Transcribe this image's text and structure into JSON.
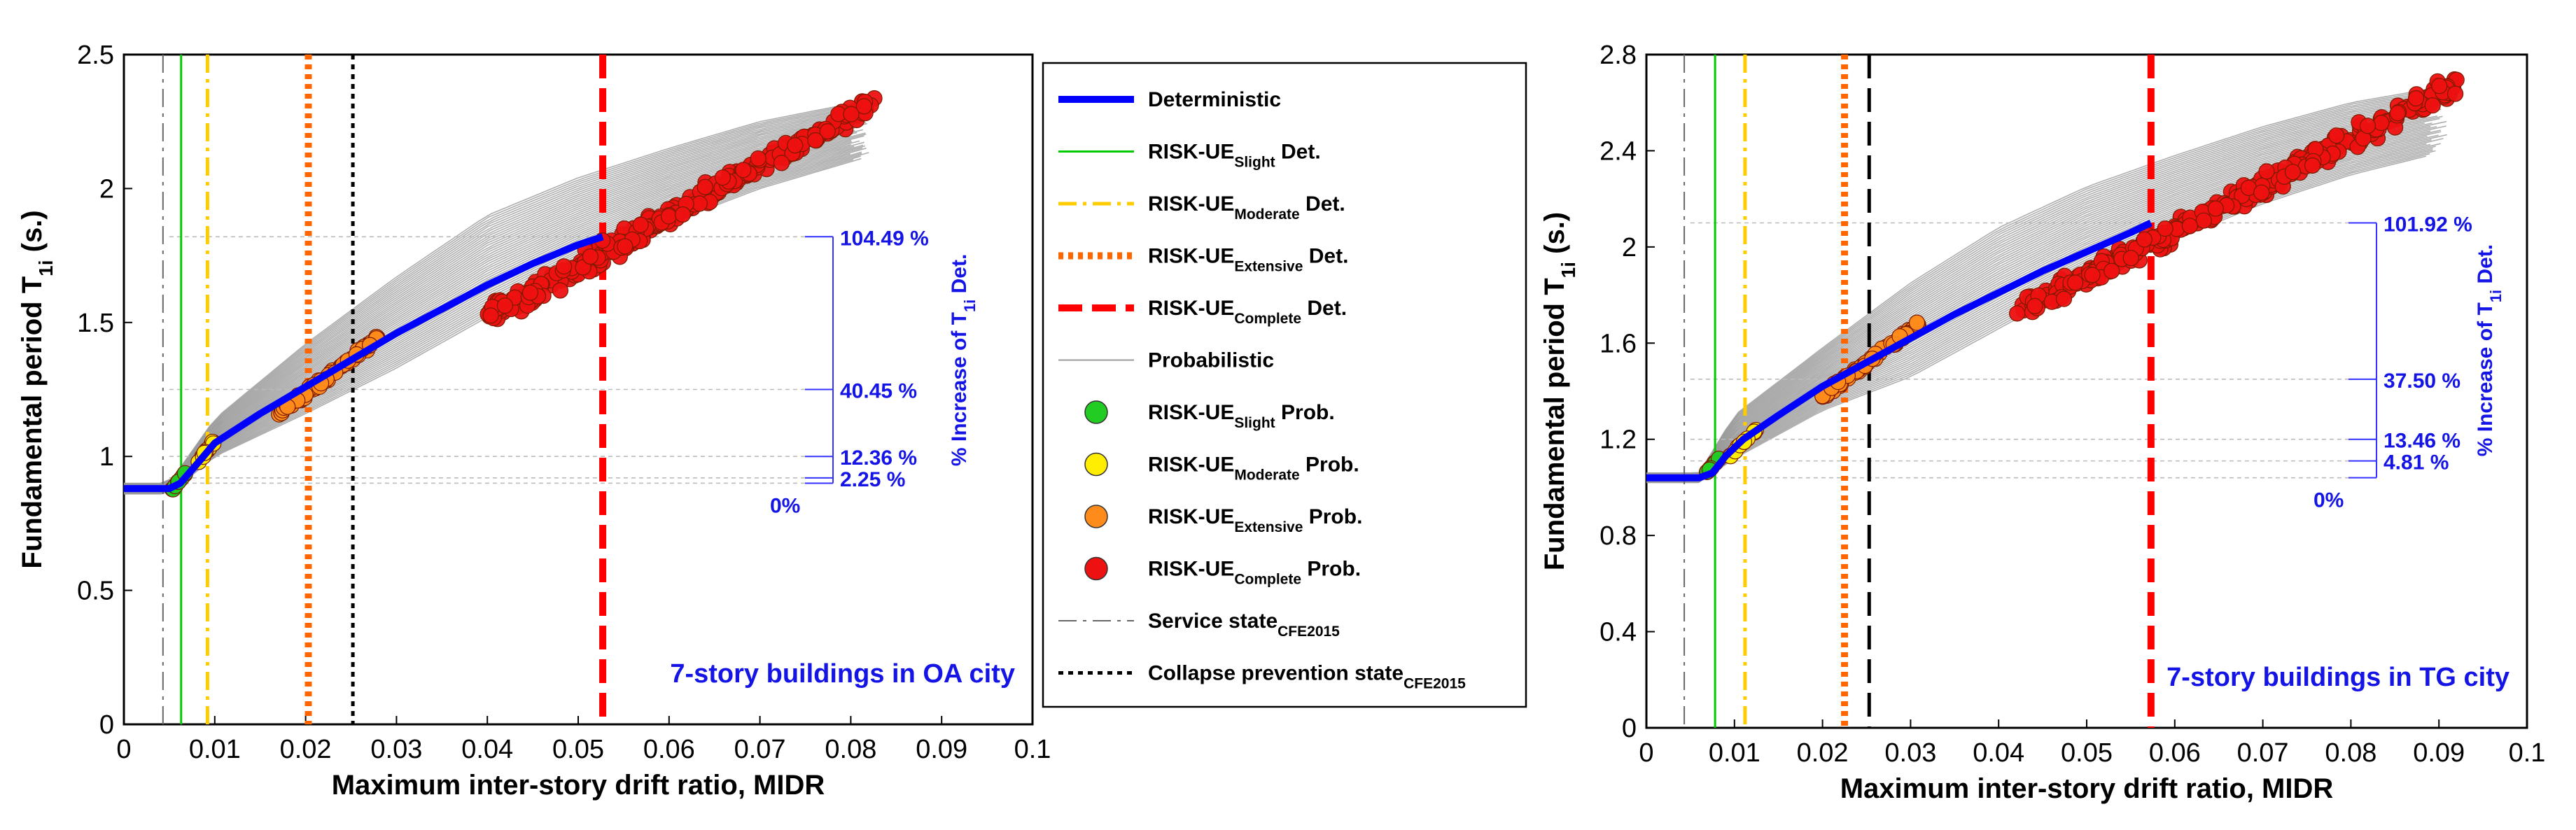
{
  "legend": {
    "items": [
      {
        "label": "Deterministic",
        "sub": "",
        "suffix": "",
        "type": "line",
        "color": "#0000ff",
        "dash": "solid",
        "thick": "heavy"
      },
      {
        "label": "RISK-UE",
        "sub": "Slight",
        "suffix": " Det.",
        "type": "line",
        "color": "#00cc00",
        "dash": "solid",
        "thick": "thin"
      },
      {
        "label": "RISK-UE",
        "sub": "Moderate",
        "suffix": " Det.",
        "type": "line",
        "color": "#ffcc00",
        "dash": "dashdot",
        "thick": "mid"
      },
      {
        "label": "RISK-UE",
        "sub": "Extensive",
        "suffix": " Det.",
        "type": "line",
        "color": "#ff6600",
        "dash": "dotted",
        "thick": "heavy"
      },
      {
        "label": "RISK-UE",
        "sub": "Complete",
        "suffix": " Det.",
        "type": "line",
        "color": "#ff0000",
        "dash": "dashed",
        "thick": "heavy"
      },
      {
        "label": "Probabilistic",
        "sub": "",
        "suffix": "",
        "type": "line",
        "color": "#9a9a9a",
        "dash": "solid",
        "thick": "hair"
      },
      {
        "label": "RISK-UE",
        "sub": "Slight",
        "suffix": " Prob.",
        "type": "marker",
        "color": "#22cc22"
      },
      {
        "label": "RISK-UE",
        "sub": "Moderate",
        "suffix": " Prob.",
        "type": "marker",
        "color": "#ffee00"
      },
      {
        "label": "RISK-UE",
        "sub": "Extensive",
        "suffix": " Prob.",
        "type": "marker",
        "color": "#ff8c1a"
      },
      {
        "label": "RISK-UE",
        "sub": "Complete",
        "suffix": " Prob.",
        "type": "marker",
        "color": "#ee1111"
      },
      {
        "label": "Service state",
        "sub": "CFE2015",
        "suffix": "",
        "type": "line",
        "color": "#666666",
        "dash": "dashdot",
        "thick": "hair"
      },
      {
        "label": "Collapse prevention state",
        "sub": "CFE2015",
        "suffix": "",
        "type": "line",
        "color": "#000000",
        "dash": "dotted",
        "thick": "mid"
      }
    ]
  },
  "chart_data": [
    {
      "type": "line",
      "caption": "7-story buildings in OA city",
      "xlabel": "Maximum inter-story drift ratio, MIDR",
      "ylabel": "Fundamental period T",
      "ylabel_sub": "1i",
      "ylabel_suffix": " (s.)",
      "xlim": [
        0,
        0.1
      ],
      "ylim": [
        0,
        2.5
      ],
      "xticks": [
        "0",
        "0.01",
        "0.02",
        "0.03",
        "0.04",
        "0.05",
        "0.06",
        "0.07",
        "0.08",
        "0.09",
        "0.1"
      ],
      "yticks": [
        "0",
        "0.5",
        "1",
        "1.5",
        "2",
        "2.5"
      ],
      "deterministic": {
        "x": [
          0,
          0.005,
          0.0062,
          0.008,
          0.01,
          0.015,
          0.02,
          0.025,
          0.03,
          0.035,
          0.04,
          0.045,
          0.05,
          0.0527
        ],
        "y": [
          0.88,
          0.88,
          0.9,
          0.97,
          1.05,
          1.16,
          1.26,
          1.36,
          1.46,
          1.55,
          1.64,
          1.72,
          1.79,
          1.82
        ]
      },
      "prob_band": {
        "x": [
          0,
          0.005,
          0.01,
          0.02,
          0.03,
          0.04,
          0.05,
          0.06,
          0.07,
          0.082
        ],
        "upper": [
          0.9,
          0.9,
          1.14,
          1.42,
          1.67,
          1.9,
          2.04,
          2.15,
          2.25,
          2.33
        ],
        "lower": [
          0.86,
          0.86,
          1.0,
          1.16,
          1.33,
          1.52,
          1.7,
          1.87,
          2.0,
          2.12
        ]
      },
      "vlines": [
        {
          "x": 0.0043,
          "color": "#666666",
          "dash": "dashdot",
          "thick": "hair"
        },
        {
          "x": 0.0063,
          "color": "#00cc00",
          "dash": "solid",
          "thick": "thin"
        },
        {
          "x": 0.0092,
          "color": "#ffcc00",
          "dash": "dashdot",
          "thick": "mid"
        },
        {
          "x": 0.0203,
          "color": "#ff6600",
          "dash": "dotted",
          "thick": "heavy"
        },
        {
          "x": 0.0252,
          "color": "#000000",
          "dash": "dotted",
          "thick": "mid"
        },
        {
          "x": 0.0527,
          "color": "#ff0000",
          "dash": "dashed",
          "thick": "heavy"
        }
      ],
      "clusters": [
        {
          "name": "Slight",
          "color": "#22cc22",
          "x0": 0.0052,
          "x1": 0.0068,
          "y0": 0.87,
          "y1": 0.94,
          "n": 10
        },
        {
          "name": "Moderate",
          "color": "#ffee00",
          "x0": 0.0076,
          "x1": 0.0102,
          "y0": 0.95,
          "y1": 1.07,
          "n": 12
        },
        {
          "name": "Extensive",
          "color": "#ff8c1a",
          "x0": 0.017,
          "x1": 0.028,
          "y0": 1.16,
          "y1": 1.44,
          "n": 70
        },
        {
          "name": "Complete",
          "color": "#ee1111",
          "x0": 0.04,
          "x1": 0.083,
          "y0": 1.52,
          "y1": 2.33,
          "n": 320
        }
      ],
      "percent_axis": "% Increase of T",
      "percent_axis_sub": "1i",
      "percent_axis_suffix": " Det.",
      "percentages": [
        {
          "label": "104.49 %",
          "y": 1.82
        },
        {
          "label": "40.45 %",
          "y": 1.25
        },
        {
          "label": "12.36 %",
          "y": 1.0
        },
        {
          "label": "2.25 %",
          "y": 0.92
        },
        {
          "label": "0%",
          "y": 0.9
        }
      ]
    },
    {
      "type": "line",
      "caption": "7-story buildings in TG city",
      "xlabel": "Maximum inter-story drift ratio, MIDR",
      "ylabel": "Fundamental period T",
      "ylabel_sub": "1i",
      "ylabel_suffix": " (s.)",
      "xlim": [
        0,
        0.1
      ],
      "ylim": [
        0,
        2.8
      ],
      "xticks": [
        "0",
        "0.01",
        "0.02",
        "0.03",
        "0.04",
        "0.05",
        "0.06",
        "0.07",
        "0.08",
        "0.09",
        "0.1"
      ],
      "yticks": [
        "0",
        "0.4",
        "0.8",
        "1.2",
        "1.6",
        "2",
        "2.4",
        "2.8"
      ],
      "deterministic": {
        "x": [
          0,
          0.006,
          0.0075,
          0.009,
          0.011,
          0.015,
          0.02,
          0.025,
          0.03,
          0.035,
          0.04,
          0.045,
          0.05,
          0.055,
          0.0573
        ],
        "y": [
          1.04,
          1.04,
          1.06,
          1.13,
          1.2,
          1.3,
          1.42,
          1.52,
          1.62,
          1.72,
          1.81,
          1.9,
          1.98,
          2.06,
          2.1
        ]
      },
      "prob_band": {
        "x": [
          0,
          0.006,
          0.01,
          0.02,
          0.03,
          0.04,
          0.05,
          0.06,
          0.07,
          0.08,
          0.091
        ],
        "upper": [
          1.06,
          1.06,
          1.3,
          1.58,
          1.85,
          2.08,
          2.25,
          2.38,
          2.5,
          2.6,
          2.67
        ],
        "lower": [
          1.02,
          1.02,
          1.12,
          1.32,
          1.46,
          1.66,
          1.86,
          2.03,
          2.18,
          2.3,
          2.4
        ]
      },
      "vlines": [
        {
          "x": 0.0043,
          "color": "#666666",
          "dash": "dashdot",
          "thick": "hair"
        },
        {
          "x": 0.0078,
          "color": "#00cc00",
          "dash": "solid",
          "thick": "thin"
        },
        {
          "x": 0.0112,
          "color": "#ffcc00",
          "dash": "dashdot",
          "thick": "mid"
        },
        {
          "x": 0.0225,
          "color": "#ff6600",
          "dash": "dotted",
          "thick": "heavy"
        },
        {
          "x": 0.0253,
          "color": "#000000",
          "dash": "dashed",
          "thick": "mid"
        },
        {
          "x": 0.0573,
          "color": "#ff0000",
          "dash": "dashed",
          "thick": "heavy"
        }
      ],
      "clusters": [
        {
          "name": "Slight",
          "color": "#22cc22",
          "x0": 0.0068,
          "x1": 0.0085,
          "y0": 1.06,
          "y1": 1.13,
          "n": 10
        },
        {
          "name": "Moderate",
          "color": "#ffee00",
          "x0": 0.0095,
          "x1": 0.0125,
          "y0": 1.13,
          "y1": 1.24,
          "n": 12
        },
        {
          "name": "Extensive",
          "color": "#ff8c1a",
          "x0": 0.02,
          "x1": 0.031,
          "y0": 1.38,
          "y1": 1.68,
          "n": 70
        },
        {
          "name": "Complete",
          "color": "#ee1111",
          "x0": 0.042,
          "x1": 0.092,
          "y0": 1.72,
          "y1": 2.68,
          "n": 320
        }
      ],
      "percent_axis": "% Increase of T",
      "percent_axis_sub": "1i",
      "percent_axis_suffix": " Det.",
      "percentages": [
        {
          "label": "101.92 %",
          "y": 2.1
        },
        {
          "label": "37.50 %",
          "y": 1.45
        },
        {
          "label": "13.46 %",
          "y": 1.2
        },
        {
          "label": "4.81 %",
          "y": 1.11
        },
        {
          "label": "0%",
          "y": 1.04
        }
      ]
    }
  ]
}
